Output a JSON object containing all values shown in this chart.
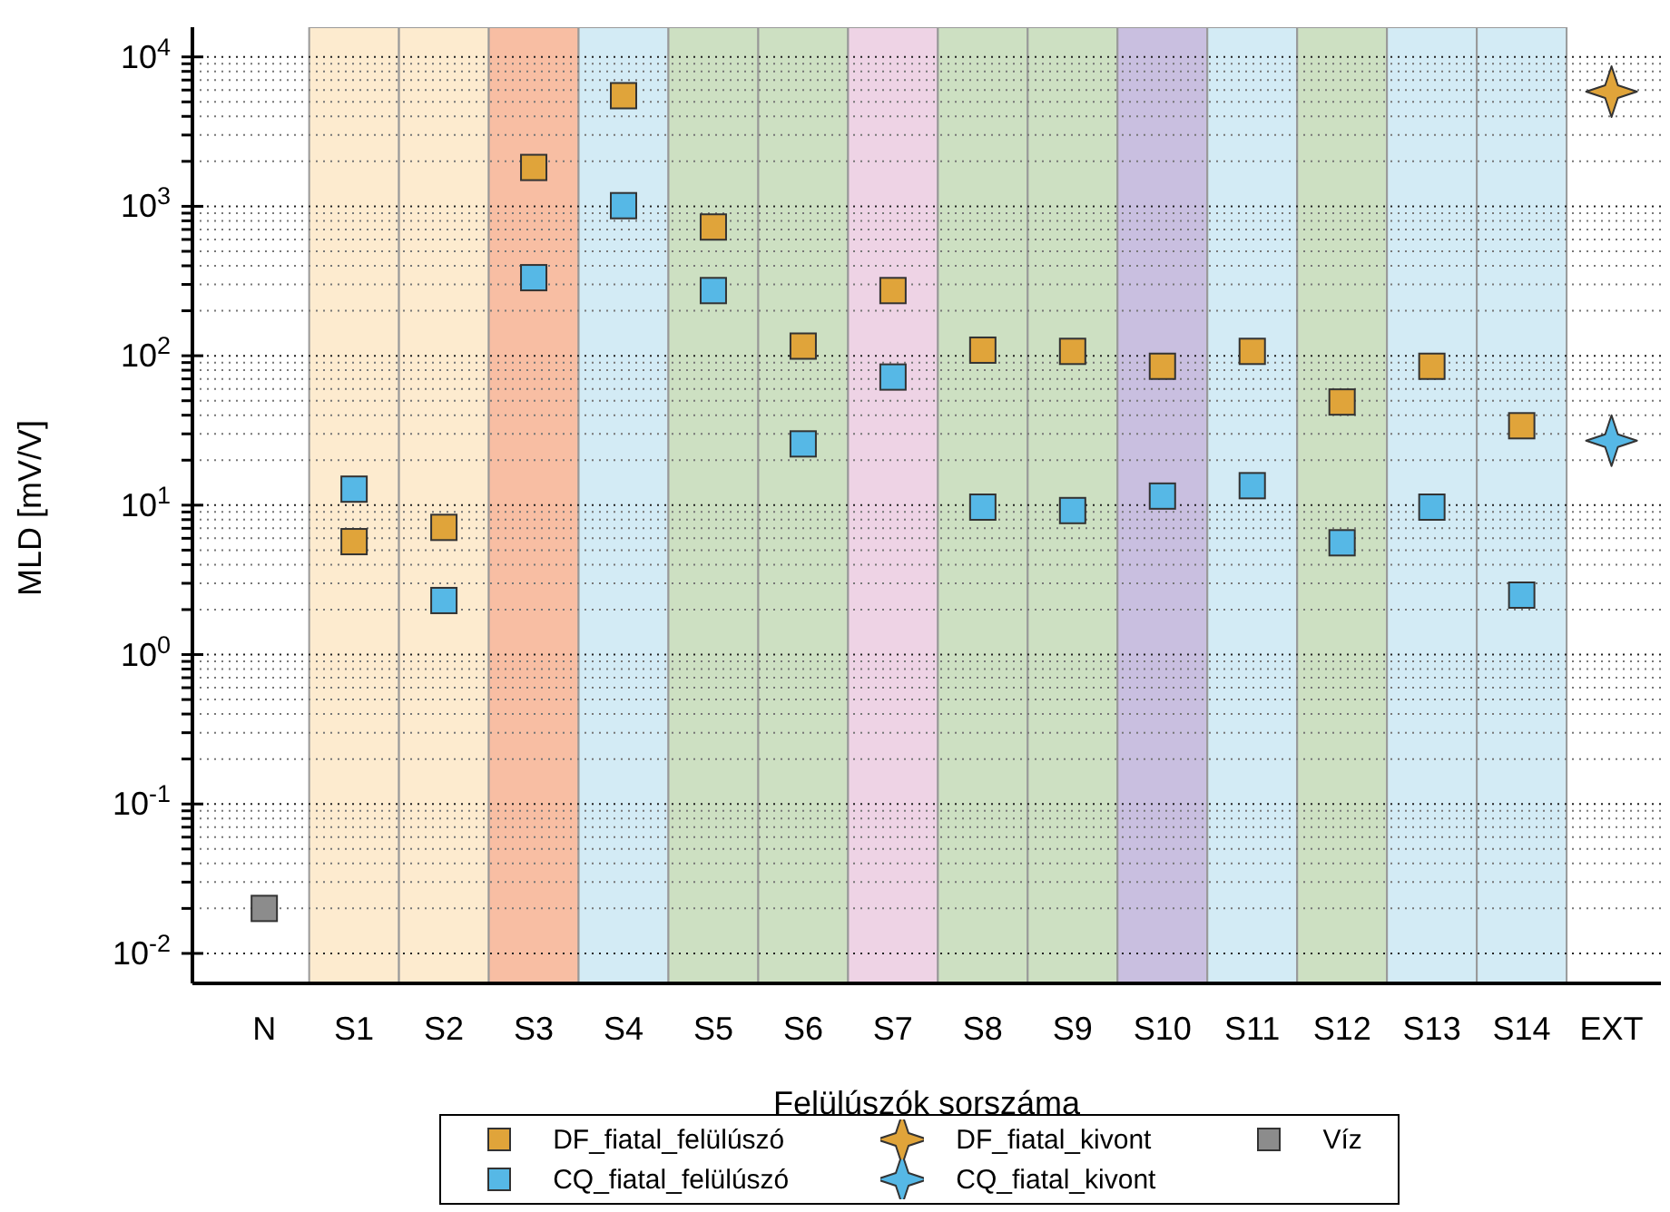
{
  "chart_data": {
    "type": "scatter",
    "xlabel": "Felülúszók sorszáma",
    "ylabel": "MLD [mV/V]",
    "categories": [
      "N",
      "S1",
      "S2",
      "S3",
      "S4",
      "S5",
      "S6",
      "S7",
      "S8",
      "S9",
      "S10",
      "S11",
      "S12",
      "S13",
      "S14",
      "EXT"
    ],
    "series": [
      {
        "name": "DF_fiatal_felülúszó",
        "color": "#e0a43a",
        "marker": "square",
        "values": [
          null,
          5.7,
          7.1,
          1820,
          5500,
          727,
          116,
          273,
          109,
          107,
          85,
          107,
          49,
          85,
          34,
          null
        ]
      },
      {
        "name": "CQ_fiatal_felülúszó",
        "color": "#56b8e6",
        "marker": "square",
        "values": [
          null,
          12.8,
          2.3,
          333,
          1010,
          273,
          25.7,
          72,
          9.7,
          9.2,
          11.5,
          13.5,
          5.6,
          9.7,
          2.5,
          null
        ]
      },
      {
        "name": "DF_fiatal_kivont",
        "color": "#e0a43a",
        "marker": "star",
        "values": [
          null,
          null,
          null,
          null,
          null,
          null,
          null,
          null,
          null,
          null,
          null,
          null,
          null,
          null,
          null,
          5860
        ]
      },
      {
        "name": "CQ_fiatal_kivont",
        "color": "#56b8e6",
        "marker": "star",
        "values": [
          null,
          null,
          null,
          null,
          null,
          null,
          null,
          null,
          null,
          null,
          null,
          null,
          null,
          null,
          null,
          27
        ]
      },
      {
        "name": "Víz",
        "color": "#8c8c8c",
        "marker": "square",
        "values": [
          0.02,
          null,
          null,
          null,
          null,
          null,
          null,
          null,
          null,
          null,
          null,
          null,
          null,
          null,
          null,
          null
        ]
      }
    ],
    "log": "y",
    "ylim": [
      0.0063,
      15800
    ],
    "yticks": [
      {
        "value": 0.01,
        "label": "10$^{-2}$"
      },
      {
        "value": 0.02,
        "label": null
      },
      {
        "value": 0.03,
        "label": null
      },
      {
        "value": 0.04,
        "label": null
      },
      {
        "value": 0.05,
        "label": null
      },
      {
        "value": 0.06,
        "label": null
      },
      {
        "value": 0.07,
        "label": null
      },
      {
        "value": 0.08,
        "label": null
      },
      {
        "value": 0.09,
        "label": null
      },
      {
        "value": 0.1,
        "label": "10$^{-1}$"
      },
      {
        "value": 0.2,
        "label": null
      },
      {
        "value": 0.3,
        "label": null
      },
      {
        "value": 0.4,
        "label": null
      },
      {
        "value": 0.5,
        "label": null
      },
      {
        "value": 0.6,
        "label": null
      },
      {
        "value": 0.7,
        "label": null
      },
      {
        "value": 0.8,
        "label": null
      },
      {
        "value": 0.9,
        "label": null
      },
      {
        "value": 1,
        "label": "10$^{0}$"
      },
      {
        "value": 2,
        "label": null
      },
      {
        "value": 3,
        "label": null
      },
      {
        "value": 4,
        "label": null
      },
      {
        "value": 5,
        "label": null
      },
      {
        "value": 6,
        "label": null
      },
      {
        "value": 7,
        "label": null
      },
      {
        "value": 8,
        "label": null
      },
      {
        "value": 9,
        "label": null
      },
      {
        "value": 10,
        "label": "10$^{1}$"
      },
      {
        "value": 20,
        "label": null
      },
      {
        "value": 30,
        "label": null
      },
      {
        "value": 40,
        "label": null
      },
      {
        "value": 50,
        "label": null
      },
      {
        "value": 60,
        "label": null
      },
      {
        "value": 70,
        "label": null
      },
      {
        "value": 80,
        "label": null
      },
      {
        "value": 90,
        "label": null
      },
      {
        "value": 100,
        "label": "10$^{2}$"
      },
      {
        "value": 200,
        "label": null
      },
      {
        "value": 300,
        "label": null
      },
      {
        "value": 400,
        "label": null
      },
      {
        "value": 500,
        "label": null
      },
      {
        "value": 600,
        "label": null
      },
      {
        "value": 700,
        "label": null
      },
      {
        "value": 800,
        "label": null
      },
      {
        "value": 900,
        "label": null
      },
      {
        "value": 1000,
        "label": "10$^{3}$"
      },
      {
        "value": 2000,
        "label": null
      },
      {
        "value": 3000,
        "label": null
      },
      {
        "value": 4000,
        "label": null
      },
      {
        "value": 5000,
        "label": null
      },
      {
        "value": 6000,
        "label": null
      },
      {
        "value": 7000,
        "label": null
      },
      {
        "value": 8000,
        "label": null
      },
      {
        "value": 9000,
        "label": null
      },
      {
        "value": 10000,
        "label": "10$^{4}$"
      }
    ],
    "grid": "y",
    "legend": "bottom",
    "bands": [
      {
        "axis": "x",
        "from": "S1",
        "to": "S1",
        "color": "#fdebcf"
      },
      {
        "axis": "x",
        "from": "S2",
        "to": "S2",
        "color": "#fdebcf"
      },
      {
        "axis": "x",
        "from": "S3",
        "to": "S3",
        "color": "#f8bea3"
      },
      {
        "axis": "x",
        "from": "S4",
        "to": "S4",
        "color": "#d3ebf5"
      },
      {
        "axis": "x",
        "from": "S5",
        "to": "S5",
        "color": "#cde0c2"
      },
      {
        "axis": "x",
        "from": "S6",
        "to": "S6",
        "color": "#cde0c2"
      },
      {
        "axis": "x",
        "from": "S7",
        "to": "S7",
        "color": "#eed3e5"
      },
      {
        "axis": "x",
        "from": "S8",
        "to": "S8",
        "color": "#cde0c2"
      },
      {
        "axis": "x",
        "from": "S9",
        "to": "S9",
        "color": "#cde0c2"
      },
      {
        "axis": "x",
        "from": "S10",
        "to": "S10",
        "color": "#c9bfe0"
      },
      {
        "axis": "x",
        "from": "S11",
        "to": "S11",
        "color": "#d3ebf5"
      },
      {
        "axis": "x",
        "from": "S12",
        "to": "S12",
        "color": "#cde0c2"
      },
      {
        "axis": "x",
        "from": "S13",
        "to": "S13",
        "color": "#d3ebf5"
      },
      {
        "axis": "x",
        "from": "S14",
        "to": "S14",
        "color": "#d3ebf5"
      }
    ]
  }
}
